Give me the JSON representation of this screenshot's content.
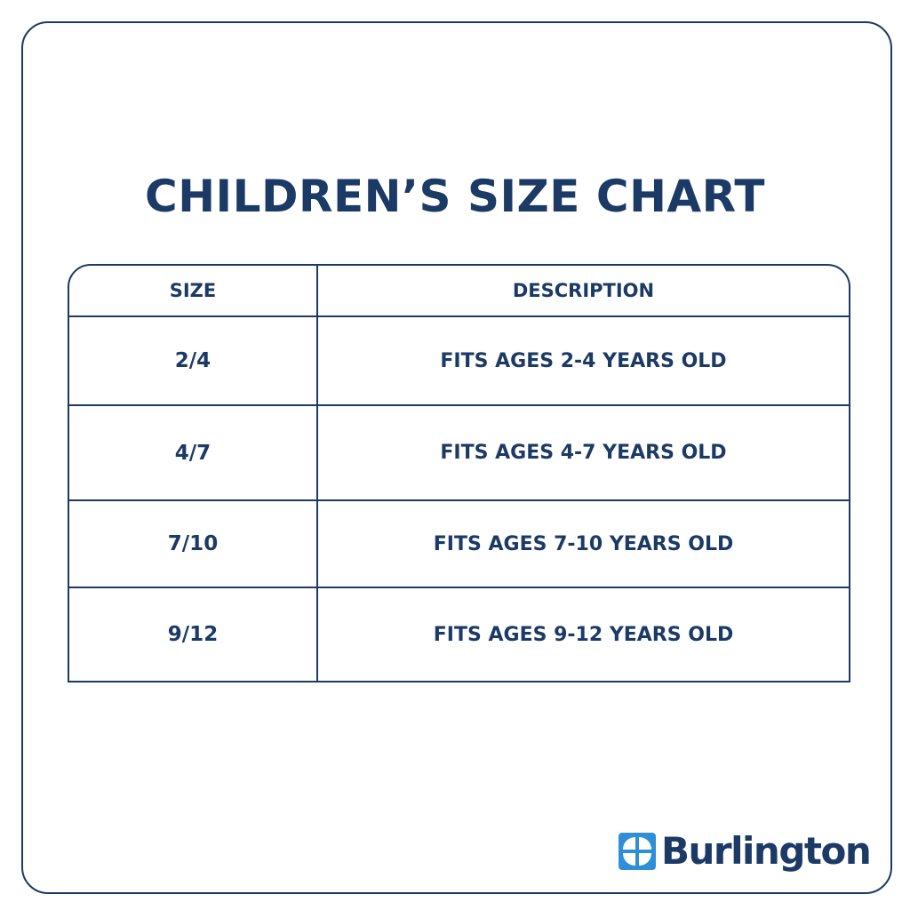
{
  "title": "CHILDREN’S SIZE CHART",
  "table": {
    "headers": {
      "size": "SIZE",
      "description": "DESCRIPTION"
    },
    "rows": [
      {
        "size": "2/4",
        "description": "FITS AGES 2-4 YEARS OLD"
      },
      {
        "size": "4/7",
        "description": "FITS AGES 4-7 YEARS OLD"
      },
      {
        "size": "7/10",
        "description": "FITS AGES 7-10 YEARS OLD"
      },
      {
        "size": "9/12",
        "description": "FITS AGES 9-12 YEARS OLD"
      }
    ]
  },
  "brand": {
    "name": "Burlington",
    "logo_icon": "burlington-logo-icon",
    "colors": {
      "primary": "#1b3a66",
      "logo_blue": "#2f8fd6",
      "background": "#ffffff"
    }
  }
}
